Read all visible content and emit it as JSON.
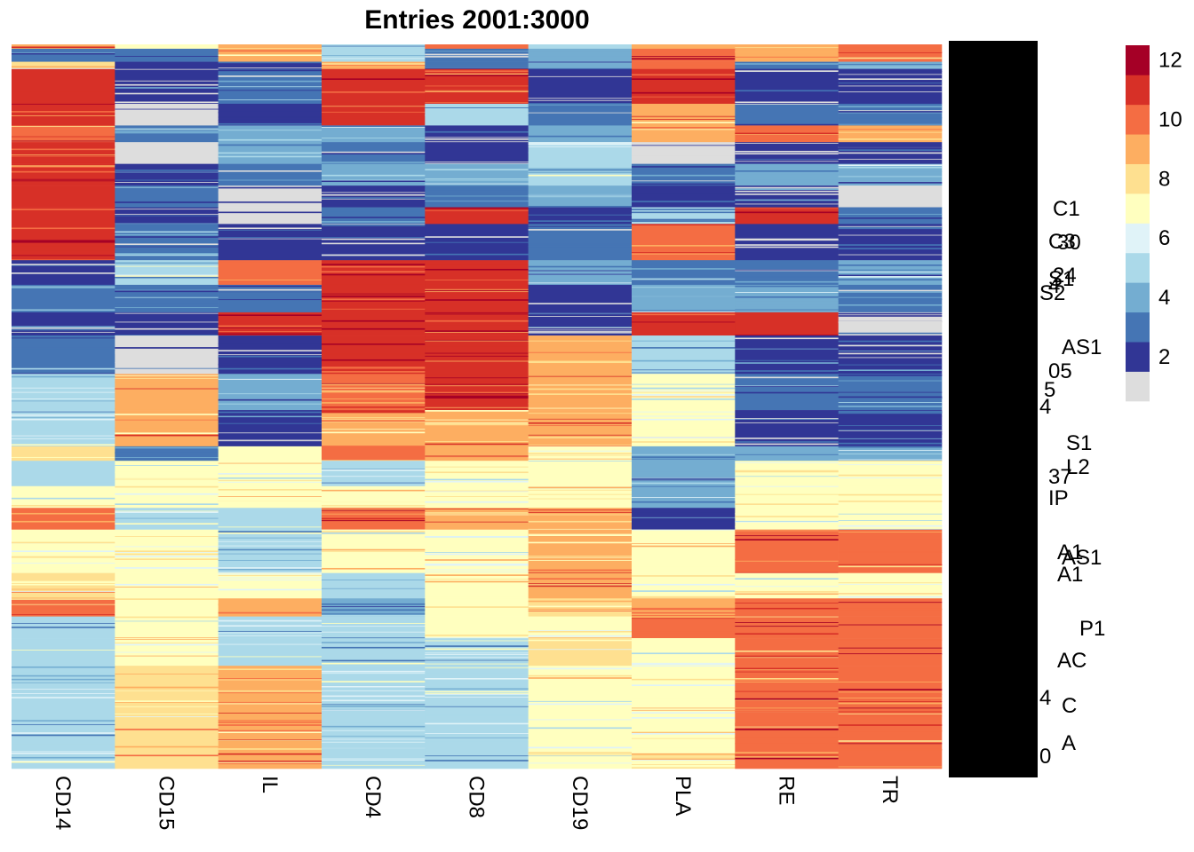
{
  "chart_data": {
    "type": "heatmap",
    "title": "Entries 2001:3000",
    "columns": [
      "CD14",
      "CD15",
      "IL",
      "CD4",
      "CD8",
      "CD19",
      "PLA",
      "RE",
      "TR"
    ],
    "row_count": 1000,
    "row_labels_visible": [
      "C1",
      "C3",
      "S1",
      "S2",
      "30",
      "24",
      "4",
      "AS1",
      "05",
      "5",
      "4",
      "S1",
      "L2",
      "37",
      "IP",
      "A1",
      "AS1",
      "A1",
      "P1",
      "AC",
      "4",
      "C",
      "A",
      "0"
    ],
    "color_scale": {
      "min": 1,
      "max": 13,
      "ticks": [
        2,
        4,
        6,
        8,
        10,
        12
      ],
      "colors": [
        "#dddddd",
        "#313695",
        "#4575b4",
        "#74add1",
        "#abd9e9",
        "#e0f3f8",
        "#ffffbf",
        "#fee090",
        "#fdae61",
        "#f46d43",
        "#d73027",
        "#a50026"
      ]
    },
    "blocks": [
      {
        "rows": [
          0,
          6
        ],
        "values": [
          9,
          7,
          9,
          5,
          10,
          5,
          9,
          9,
          10
        ]
      },
      {
        "rows": [
          6,
          24
        ],
        "values": [
          3,
          3,
          9,
          5,
          3,
          4,
          10,
          9,
          10
        ]
      },
      {
        "rows": [
          24,
          34
        ],
        "values": [
          8,
          2,
          2,
          9,
          3,
          4,
          10,
          3,
          4
        ]
      },
      {
        "rows": [
          34,
          82
        ],
        "values": [
          11,
          2,
          3,
          11,
          11,
          2,
          11,
          2,
          2
        ]
      },
      {
        "rows": [
          82,
          112
        ],
        "values": [
          11,
          1,
          2,
          11,
          5,
          3,
          9,
          3,
          3
        ]
      },
      {
        "rows": [
          112,
          135
        ],
        "values": [
          10,
          3,
          4,
          4,
          2,
          4,
          9,
          10,
          9
        ]
      },
      {
        "rows": [
          135,
          165
        ],
        "values": [
          11,
          1,
          4,
          3,
          2,
          5,
          1,
          2,
          2
        ]
      },
      {
        "rows": [
          165,
          195
        ],
        "values": [
          11,
          2,
          3,
          4,
          4,
          5,
          3,
          4,
          4
        ]
      },
      {
        "rows": [
          195,
          225
        ],
        "values": [
          11,
          3,
          1,
          2,
          3,
          4,
          2,
          2,
          1
        ]
      },
      {
        "rows": [
          225,
          248
        ],
        "values": [
          11,
          2,
          1,
          3,
          11,
          2,
          5,
          11,
          3
        ]
      },
      {
        "rows": [
          248,
          298
        ],
        "values": [
          11,
          3,
          2,
          2,
          2,
          3,
          10,
          2,
          2
        ]
      },
      {
        "rows": [
          298,
          332
        ],
        "values": [
          2,
          5,
          10,
          11,
          11,
          4,
          3,
          3,
          4
        ]
      },
      {
        "rows": [
          332,
          370
        ],
        "values": [
          3,
          3,
          3,
          11,
          11,
          2,
          4,
          4,
          3
        ]
      },
      {
        "rows": [
          370,
          402
        ],
        "values": [
          2,
          2,
          11,
          11,
          11,
          2,
          11,
          11,
          1
        ]
      },
      {
        "rows": [
          402,
          455
        ],
        "values": [
          3,
          1,
          2,
          11,
          11,
          9,
          5,
          2,
          2
        ]
      },
      {
        "rows": [
          455,
          505
        ],
        "values": [
          5,
          9,
          4,
          10,
          11,
          9,
          7,
          3,
          3
        ]
      },
      {
        "rows": [
          505,
          555
        ],
        "values": [
          5,
          9,
          2,
          9,
          9,
          9,
          7,
          2,
          2
        ]
      },
      {
        "rows": [
          555,
          575
        ],
        "values": [
          8,
          3,
          7,
          10,
          9,
          7,
          4,
          4,
          4
        ]
      },
      {
        "rows": [
          575,
          610
        ],
        "values": [
          5,
          7,
          7,
          5,
          7,
          7,
          4,
          7,
          7
        ]
      },
      {
        "rows": [
          610,
          640
        ],
        "values": [
          7,
          7,
          7,
          7,
          7,
          7,
          4,
          7,
          7
        ]
      },
      {
        "rows": [
          640,
          670
        ],
        "values": [
          10,
          5,
          5,
          10,
          9,
          9,
          2,
          7,
          7
        ]
      },
      {
        "rows": [
          670,
          730
        ],
        "values": [
          7,
          7,
          5,
          7,
          7,
          9,
          7,
          10,
          10
        ]
      },
      {
        "rows": [
          730,
          765
        ],
        "values": [
          8,
          7,
          7,
          5,
          7,
          9,
          7,
          7,
          7
        ]
      },
      {
        "rows": [
          765,
          790
        ],
        "values": [
          10,
          7,
          9,
          4,
          7,
          8,
          9,
          10,
          10
        ]
      },
      {
        "rows": [
          790,
          820
        ],
        "values": [
          5,
          7,
          5,
          5,
          7,
          7,
          10,
          10,
          10
        ]
      },
      {
        "rows": [
          820,
          858
        ],
        "values": [
          5,
          7,
          5,
          5,
          5,
          8,
          7,
          10,
          10
        ]
      },
      {
        "rows": [
          858,
          1000
        ],
        "values": [
          5,
          8,
          9,
          5,
          5,
          7,
          7,
          10,
          10
        ]
      }
    ]
  }
}
